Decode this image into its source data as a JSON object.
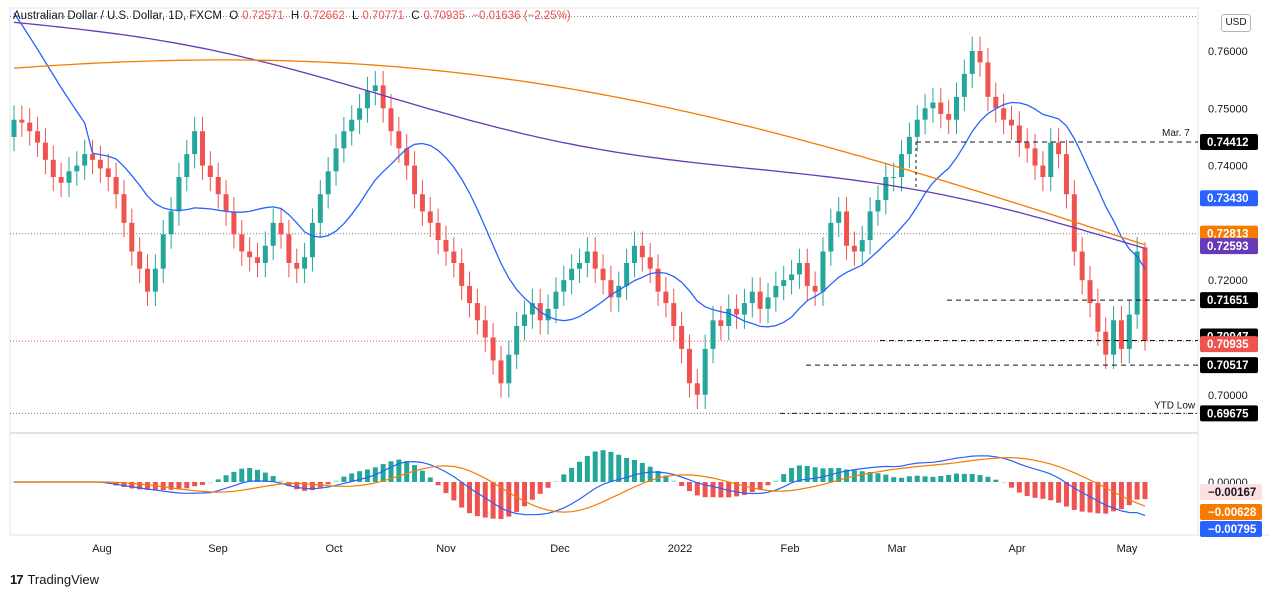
{
  "header": {
    "symbol": "Australian Dollar / U.S. Dollar, 1D, FXCM",
    "open_label": "O",
    "open": "0.72571",
    "high_label": "H",
    "high": "0.72662",
    "low_label": "L",
    "low": "0.70771",
    "close_label": "C",
    "close": "0.70935",
    "change": "−0.01636 (−2.25%)"
  },
  "currency_button": "USD",
  "watermark": "TradingView",
  "price_axis_ticks": [
    "0.76000",
    "0.75000",
    "0.74000",
    "0.72000",
    "0.70000"
  ],
  "macd_axis_tick": "0.00000",
  "time_axis": [
    "Aug",
    "Sep",
    "Oct",
    "Nov",
    "Dec",
    "2022",
    "Feb",
    "Mar",
    "Apr",
    "May"
  ],
  "annotations": {
    "mar7": "Mar. 7",
    "ytd_low": "YTD Low"
  },
  "price_labels": [
    {
      "value": "0.74412",
      "color": "#000000",
      "text_color": "#ffffff"
    },
    {
      "value": "0.73430",
      "color": "#2962ff",
      "text_color": "#ffffff"
    },
    {
      "value": "0.72813",
      "color": "#f57c00",
      "text_color": "#ffffff"
    },
    {
      "value": "0.72593",
      "color": "#673ab7",
      "text_color": "#ffffff"
    },
    {
      "value": "0.71651",
      "color": "#000000",
      "text_color": "#ffffff"
    },
    {
      "value": "0.70947",
      "color": "#000000",
      "text_color": "#ffffff"
    },
    {
      "value": "0.70935",
      "color": "#ef5350",
      "text_color": "#ffffff"
    },
    {
      "value": "0.70517",
      "color": "#000000",
      "text_color": "#ffffff"
    },
    {
      "value": "0.69675",
      "color": "#000000",
      "text_color": "#ffffff"
    }
  ],
  "macd_labels": [
    {
      "value": "−0.00167",
      "color": "#fde0e0",
      "text_color": "#131722"
    },
    {
      "value": "−0.00628",
      "color": "#f57c00",
      "text_color": "#ffffff"
    },
    {
      "value": "−0.00795",
      "color": "#2962ff",
      "text_color": "#ffffff"
    }
  ],
  "colors": {
    "up": "#26a69a",
    "down": "#ef5350",
    "sma50": "#2962ff",
    "sma100": "#673ab7",
    "sma200": "#f57c00",
    "macd": "#2962ff",
    "signal": "#f57c00"
  },
  "chart_data": {
    "type": "candlestick",
    "symbol": "AUD/USD",
    "timeframe": "1D",
    "ylim": [
      0.6935,
      0.7675
    ],
    "levels": {
      "mar7_high": 0.74412,
      "horizontal_1": 0.71651,
      "horizontal_2": 0.70947,
      "horizontal_3": 0.70517,
      "ytd_low": 0.69675,
      "dotted_top": 0.766,
      "dotted_mid": 0.7281
    },
    "moving_averages": {
      "sma50": 0.7343,
      "sma100": 0.72593,
      "sma200": 0.72813
    },
    "last_candle": {
      "open": 0.72571,
      "high": 0.72662,
      "low": 0.70771,
      "close": 0.70935
    },
    "macd": {
      "histogram": -0.00167,
      "signal": -0.00628,
      "macd": -0.00795
    },
    "closes": [
      0.748,
      0.7475,
      0.746,
      0.744,
      0.741,
      0.738,
      0.737,
      0.739,
      0.74,
      0.742,
      0.741,
      0.7395,
      0.738,
      0.735,
      0.73,
      0.725,
      0.722,
      0.718,
      0.722,
      0.728,
      0.732,
      0.738,
      0.742,
      0.746,
      0.74,
      0.738,
      0.735,
      0.732,
      0.728,
      0.725,
      0.724,
      0.723,
      0.726,
      0.73,
      0.728,
      0.723,
      0.722,
      0.724,
      0.73,
      0.735,
      0.739,
      0.743,
      0.746,
      0.748,
      0.75,
      0.753,
      0.754,
      0.75,
      0.746,
      0.743,
      0.74,
      0.735,
      0.732,
      0.73,
      0.727,
      0.725,
      0.723,
      0.719,
      0.716,
      0.713,
      0.71,
      0.706,
      0.702,
      0.707,
      0.712,
      0.714,
      0.716,
      0.713,
      0.715,
      0.718,
      0.72,
      0.722,
      0.723,
      0.725,
      0.722,
      0.72,
      0.717,
      0.719,
      0.723,
      0.726,
      0.724,
      0.722,
      0.718,
      0.716,
      0.712,
      0.708,
      0.702,
      0.7,
      0.708,
      0.713,
      0.712,
      0.715,
      0.714,
      0.716,
      0.718,
      0.715,
      0.717,
      0.719,
      0.72,
      0.721,
      0.723,
      0.719,
      0.718,
      0.725,
      0.73,
      0.732,
      0.726,
      0.725,
      0.727,
      0.732,
      0.734,
      0.738,
      0.738,
      0.742,
      0.745,
      0.748,
      0.75,
      0.751,
      0.749,
      0.748,
      0.752,
      0.756,
      0.76,
      0.758,
      0.752,
      0.75,
      0.748,
      0.747,
      0.744,
      0.743,
      0.74,
      0.738,
      0.744,
      0.742,
      0.735,
      0.725,
      0.72,
      0.716,
      0.711,
      0.707,
      0.713,
      0.708,
      0.714,
      0.725,
      0.7094
    ]
  }
}
